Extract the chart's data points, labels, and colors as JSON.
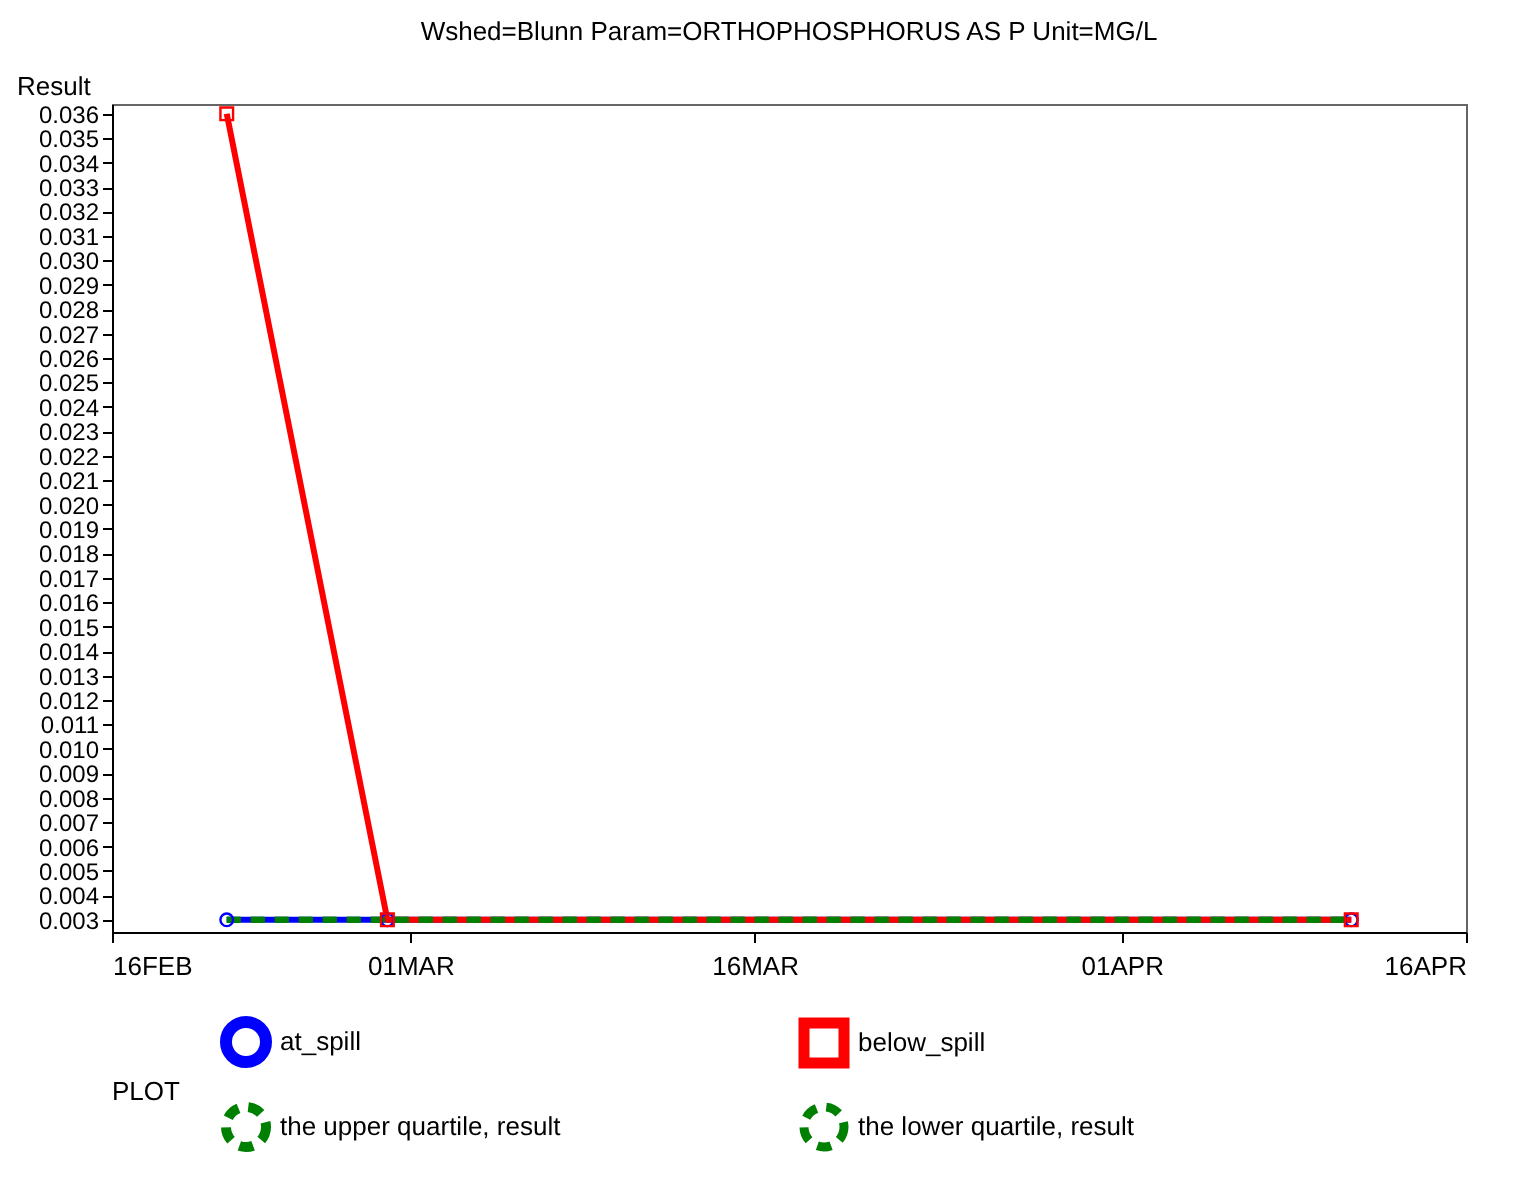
{
  "chart_data": {
    "type": "line",
    "title": "Wshed=Blunn Param=ORTHOPHOSPHORUS AS P Unit=MG/L",
    "ylabel": "Result",
    "legend_title": "PLOT",
    "x": [
      "--02-21",
      "--02-28",
      "--04-11"
    ],
    "series": [
      {
        "name": "at_spill",
        "color": "#0000ff",
        "values": [
          0.003,
          0.003,
          0.003
        ],
        "marker": "circle",
        "line_style": "solid"
      },
      {
        "name": "below_spill",
        "color": "#ff0000",
        "values": [
          0.036,
          0.003,
          0.003
        ],
        "marker": "square",
        "line_style": "solid"
      },
      {
        "name": "the upper quartile, result",
        "color": "#008000",
        "values": [
          0.003,
          0.003,
          0.003
        ],
        "marker": "none",
        "line_style": "dashed"
      },
      {
        "name": "the lower quartile, result",
        "color": "#008000",
        "values": [
          0.003,
          0.003,
          0.003
        ],
        "marker": "none",
        "line_style": "dashed"
      }
    ],
    "xlim": [
      "--02-16",
      "--04-16"
    ],
    "xticks": [
      {
        "value": "--02-16",
        "label": "16FEB"
      },
      {
        "value": "--03-01",
        "label": "01MAR"
      },
      {
        "value": "--03-16",
        "label": "16MAR"
      },
      {
        "value": "--04-01",
        "label": "01APR"
      },
      {
        "value": "--04-16",
        "label": "16APR"
      }
    ],
    "ylim": [
      0.0025,
      0.0364
    ],
    "yticks": [
      0.003,
      0.004,
      0.005,
      0.006,
      0.007,
      0.008,
      0.009,
      {
        "value": 0.01,
        "label": "0.010"
      },
      0.011,
      0.012,
      0.013,
      0.014,
      0.015,
      0.016,
      0.017,
      0.018,
      0.019,
      {
        "value": 0.02,
        "label": "0.020"
      },
      0.021,
      0.022,
      0.023,
      0.024,
      0.025,
      0.026,
      0.027,
      0.028,
      0.029,
      {
        "value": 0.03,
        "label": "0.030"
      },
      0.031,
      0.032,
      0.033,
      0.034,
      0.035,
      0.036
    ],
    "grid": false,
    "legend": "bottom"
  }
}
